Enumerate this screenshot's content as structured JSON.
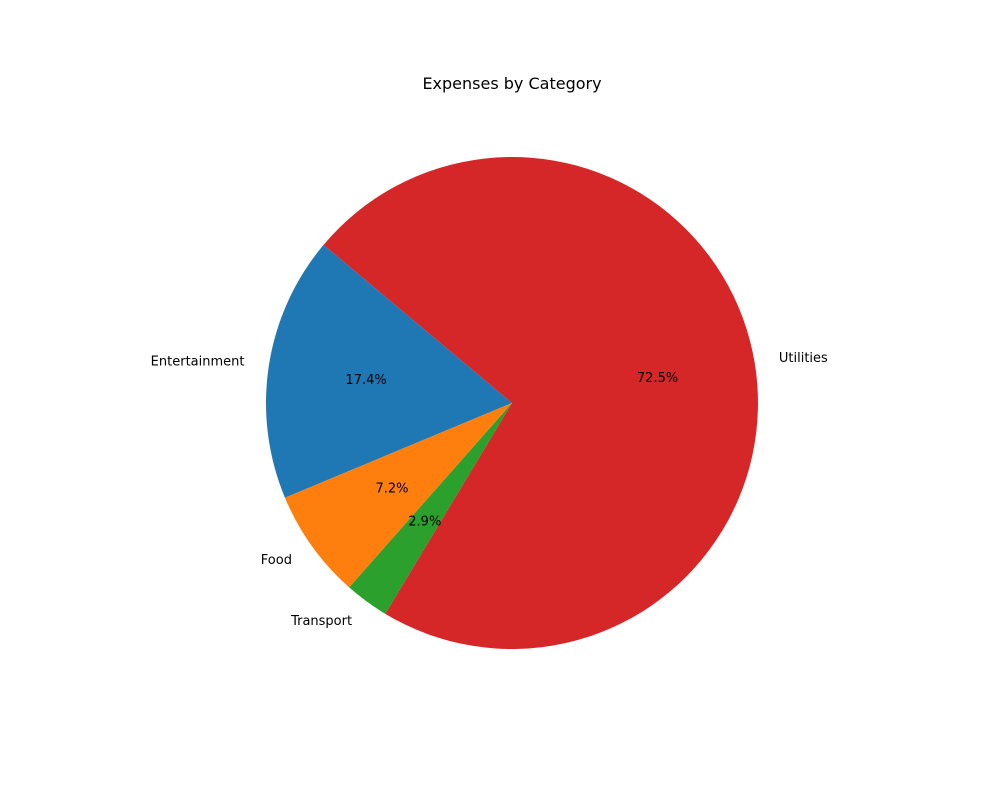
{
  "chart_data": {
    "type": "pie",
    "title": "Expenses by Category",
    "start_angle_deg": 140,
    "direction": "counterclockwise",
    "slices": [
      {
        "label": "Entertainment",
        "percent": 17.4,
        "percent_label": "17.4%",
        "color": "#1f77b4"
      },
      {
        "label": "Food",
        "percent": 7.2,
        "percent_label": "7.2%",
        "color": "#ff7f0e"
      },
      {
        "label": "Transport",
        "percent": 2.9,
        "percent_label": "2.9%",
        "color": "#2ca02c"
      },
      {
        "label": "Utilities",
        "percent": 72.5,
        "percent_label": "72.5%",
        "color": "#d62728"
      }
    ]
  }
}
